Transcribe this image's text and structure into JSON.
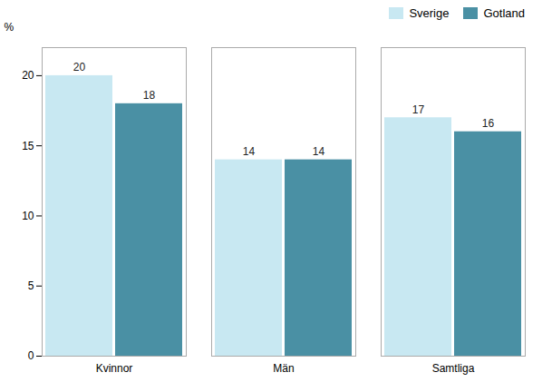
{
  "chart_data": {
    "type": "bar",
    "categories": [
      "Kvinnor",
      "Män",
      "Samtliga"
    ],
    "series": [
      {
        "name": "Sverige",
        "color": "#c8e8f2",
        "values": [
          20,
          14,
          17
        ]
      },
      {
        "name": "Gotland",
        "color": "#4a90a4",
        "values": [
          18,
          14,
          16
        ]
      }
    ],
    "ylabel": "%",
    "ylim": [
      0,
      22
    ],
    "yticks": [
      0,
      5,
      10,
      15,
      20
    ],
    "data_labels": true,
    "grid": false,
    "legend": "upper right"
  }
}
